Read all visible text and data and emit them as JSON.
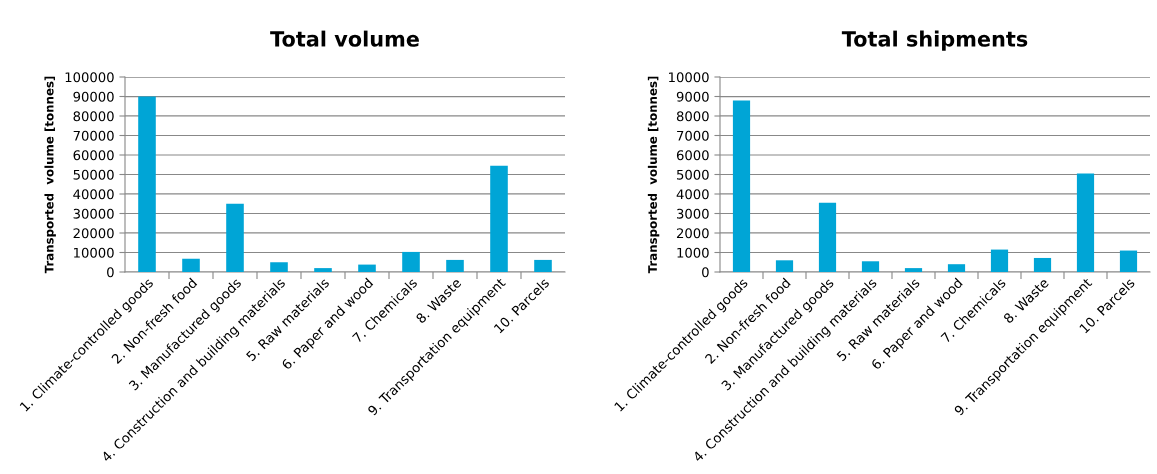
{
  "chart_data": [
    {
      "type": "bar",
      "title": "Total volume",
      "ylabel": "Transported  volume [tonnes]",
      "categories": [
        "1. Climate-controlled goods",
        "2. Non-fresh food",
        "3. Manufactured goods",
        "4. Construction and building materials",
        "5. Raw materials",
        "6. Paper and wood",
        "7. Chemicals",
        "8. Waste",
        "9. Transportation equipment",
        "10. Parcels"
      ],
      "values": [
        90000,
        6800,
        35000,
        5000,
        2000,
        3800,
        10300,
        6200,
        54500,
        6200
      ],
      "color": "#00a5d6",
      "ylim": [
        0,
        100000
      ],
      "yticks": [
        0,
        10000,
        20000,
        30000,
        40000,
        50000,
        60000,
        70000,
        80000,
        90000,
        100000
      ],
      "grid": "y"
    },
    {
      "type": "bar",
      "title": "Total shipments",
      "ylabel": "Transported  volume [tonnes]",
      "categories": [
        "1. Climate-controlled goods",
        "2. Non-fresh food",
        "3. Manufactured goods",
        "4. Construction and building materials",
        "5. Raw materials",
        "6. Paper and wood",
        "7. Chemicals",
        "8. Waste",
        "9. Transportation equipment",
        "10. Parcels"
      ],
      "values": [
        8800,
        600,
        3550,
        550,
        200,
        400,
        1150,
        720,
        5050,
        1100
      ],
      "color": "#00a5d6",
      "ylim": [
        0,
        10000
      ],
      "yticks": [
        0,
        1000,
        2000,
        3000,
        4000,
        5000,
        6000,
        7000,
        8000,
        9000,
        10000
      ],
      "grid": "y"
    }
  ]
}
